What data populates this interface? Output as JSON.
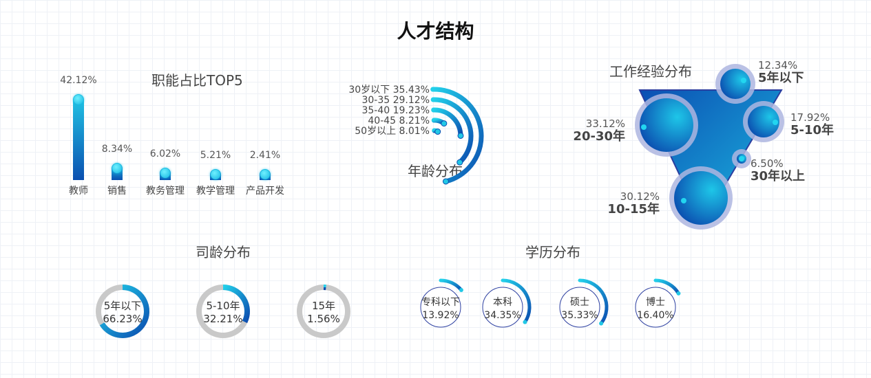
{
  "page_title": "人才结构",
  "colors": {
    "gradient_top": "#22c8e6",
    "gradient_bottom": "#0a4fb0",
    "track": "#c9c9c9",
    "halo": "#aeb6e0",
    "outline": "#2b3ea0"
  },
  "chart_data": [
    {
      "id": "job-top5",
      "type": "bar",
      "title": "职能占比TOP5",
      "categories": [
        "教师",
        "销售",
        "教务管理",
        "教学管理",
        "产品开发"
      ],
      "values": [
        42.12,
        8.34,
        6.02,
        5.21,
        2.41
      ],
      "value_labels": [
        "42.12%",
        "8.34%",
        "6.02%",
        "5.21%",
        "2.41%"
      ]
    },
    {
      "id": "age",
      "type": "radial-bar",
      "title": "年龄分布",
      "categories": [
        "30岁以下",
        "30-35",
        "35-40",
        "40-45",
        "50岁以上"
      ],
      "values": [
        35.43,
        29.12,
        19.23,
        8.21,
        8.01
      ],
      "value_labels": [
        "35.43%",
        "29.12%",
        "19.23%",
        "8.21%",
        "8.01%"
      ]
    },
    {
      "id": "experience",
      "type": "bubble",
      "title": "工作经验分布",
      "categories": [
        "5年以下",
        "5-10年",
        "30年以上",
        "10-15年",
        "20-30年"
      ],
      "values": [
        12.34,
        17.92,
        6.5,
        30.12,
        33.12
      ],
      "value_labels": [
        "12.34%",
        "17.92%",
        "6.50%",
        "30.12%",
        "33.12%"
      ]
    },
    {
      "id": "tenure",
      "type": "donut",
      "title": "司龄分布",
      "categories": [
        "5年以下",
        "5-10年",
        "15年"
      ],
      "values": [
        66.23,
        32.21,
        1.56
      ],
      "value_labels": [
        "66.23%",
        "32.21%",
        "1.56%"
      ]
    },
    {
      "id": "education",
      "type": "radial-bar",
      "title": "学历分布",
      "categories": [
        "专科以下",
        "本科",
        "硕士",
        "博士"
      ],
      "values": [
        13.92,
        34.35,
        35.33,
        16.4
      ],
      "value_labels": [
        "13.92%",
        "34.35%",
        "35.33%",
        "16.40%"
      ]
    }
  ]
}
